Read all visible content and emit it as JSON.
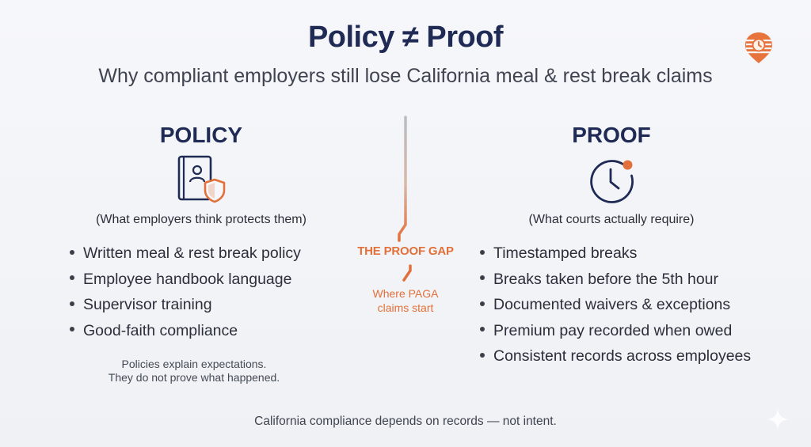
{
  "title": "Policy ≠ Proof",
  "subtitle": "Why compliant employers still lose California meal & rest break claims",
  "policy": {
    "heading": "POLICY",
    "subheading": "(What employers think protects them)",
    "items": [
      "Written meal & rest break policy",
      "Employee handbook language",
      "Supervisor training",
      "Good-faith compliance"
    ],
    "note_line1": "Policies explain expectations.",
    "note_line2": "They do not prove what happened."
  },
  "proof": {
    "heading": "PROOF",
    "subheading": "(What courts actually require)",
    "items": [
      "Timestamped breaks",
      "Breaks taken before the 5th hour",
      "Documented waivers & exceptions",
      "Premium pay recorded when owed",
      "Consistent records across employees"
    ]
  },
  "gap": {
    "label": "THE PROOF GAP",
    "sub_line1": "Where PAGA",
    "sub_line2": "claims start"
  },
  "footer": "California compliance depends on records — not intent.",
  "colors": {
    "navy": "#1f2a55",
    "accent_orange": "#e2703a",
    "text": "#2b2f3a"
  },
  "icons": {
    "policy": "handbook-shield-icon",
    "proof": "clock-icon",
    "logo": "timer-pin-logo-icon",
    "corner": "sparkle-icon"
  }
}
